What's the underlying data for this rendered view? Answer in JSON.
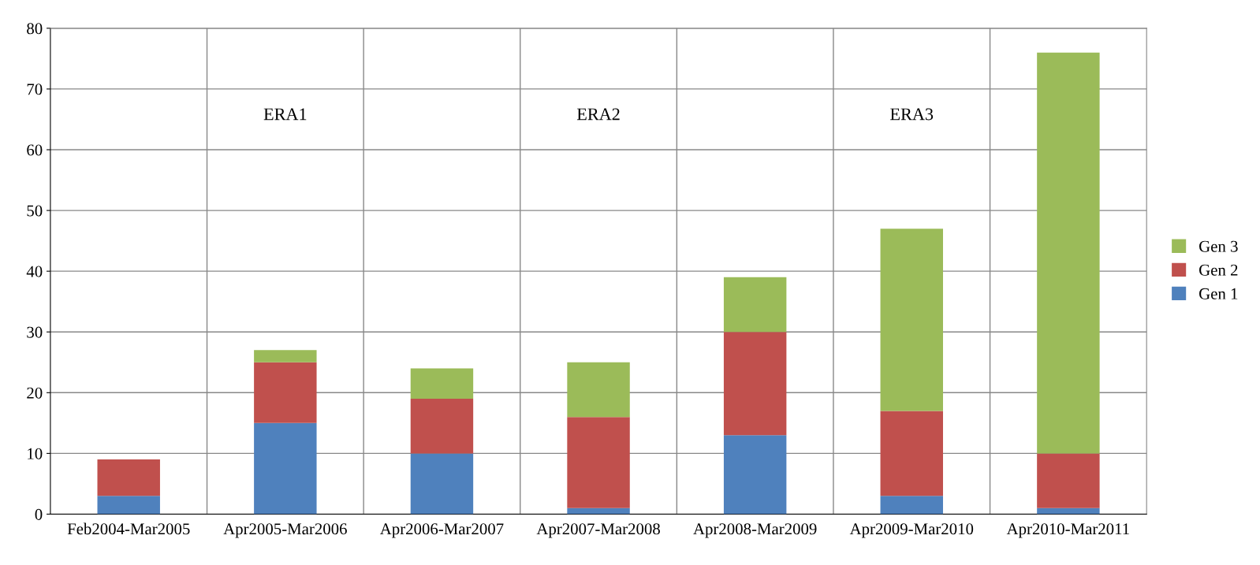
{
  "chart_data": {
    "type": "bar",
    "stacked": true,
    "categories": [
      "Feb2004-Mar2005",
      "Apr2005-Mar2006",
      "Apr2006-Mar2007",
      "Apr2007-Mar2008",
      "Apr2008-Mar2009",
      "Apr2009-Mar2010",
      "Apr2010-Mar2011"
    ],
    "series": [
      {
        "name": "Gen 1",
        "color": "#4f81bd",
        "values": [
          3,
          15,
          10,
          1,
          13,
          3,
          1
        ]
      },
      {
        "name": "Gen 2",
        "color": "#c0504d",
        "values": [
          6,
          10,
          9,
          15,
          17,
          14,
          9
        ]
      },
      {
        "name": "Gen 3",
        "color": "#9bbb59",
        "values": [
          0,
          2,
          5,
          9,
          9,
          30,
          66
        ]
      }
    ],
    "ylim": [
      0,
      80
    ],
    "yticks": [
      0,
      10,
      20,
      30,
      40,
      50,
      60,
      70,
      80
    ],
    "grid": true,
    "legend": "right",
    "annotations": [
      "ERA1",
      "ERA2",
      "ERA3"
    ]
  }
}
